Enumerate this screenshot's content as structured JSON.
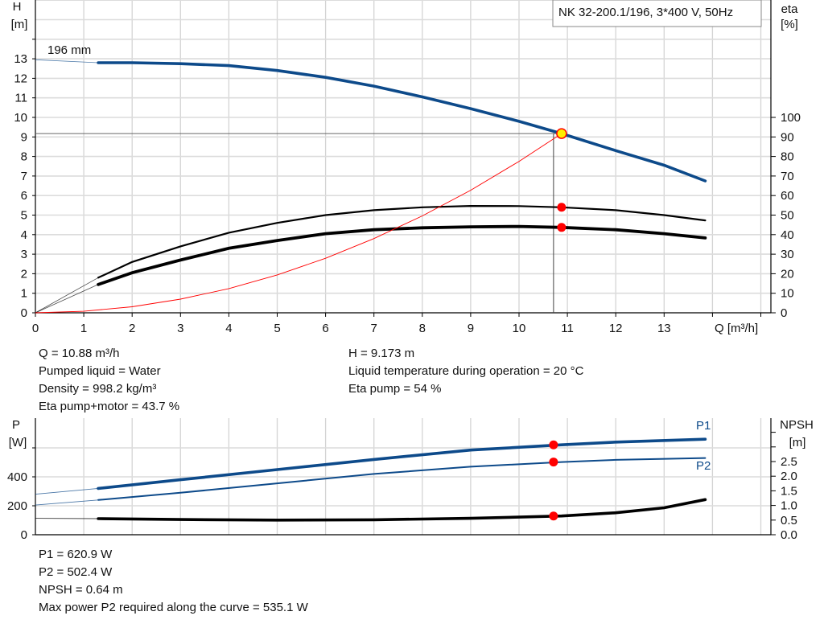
{
  "chart_data": [
    {
      "type": "line",
      "title": "NK 32-200.1/196, 3*400 V, 50Hz",
      "xlabel": "Q [m³/h]",
      "ylabel": "H [m]",
      "ylabel_name": "H",
      "ylabel_unit": "[m]",
      "y2label_name": "eta",
      "y2label_unit": "[%]",
      "xlim": [
        0,
        15
      ],
      "ylim": [
        0,
        16
      ],
      "y2lim": [
        0,
        160
      ],
      "x_ticks": [
        0,
        1,
        2,
        3,
        4,
        5,
        6,
        7,
        8,
        9,
        10,
        11,
        12,
        13
      ],
      "y_ticks": [
        0,
        1,
        2,
        3,
        4,
        5,
        6,
        7,
        8,
        9,
        10,
        11,
        12,
        13
      ],
      "y2_ticks": [
        0,
        10,
        20,
        30,
        40,
        50,
        60,
        70,
        80,
        90,
        100
      ],
      "grid": true,
      "annotation": "196 mm",
      "colors": {
        "head": "#0d4a8a",
        "eta": "#000000",
        "system": "#ff0000",
        "point": "#ff0000",
        "duty_point_fill": "#ffee00"
      },
      "duty_point": {
        "Q": 10.88,
        "H": 9.173,
        "eta_pump": 54,
        "eta_pump_motor": 43.7
      },
      "series": [
        {
          "key": "head",
          "axis": "H",
          "x": [
            0,
            1.3,
            2,
            3,
            4,
            5,
            6,
            7,
            8,
            9,
            10,
            10.88,
            12,
            13,
            13.85
          ],
          "y": [
            12.95,
            12.8,
            12.8,
            12.75,
            12.65,
            12.4,
            12.05,
            11.6,
            11.05,
            10.45,
            9.8,
            9.173,
            8.3,
            7.55,
            6.75
          ]
        },
        {
          "key": "eta-pump",
          "axis": "eta",
          "x": [
            0,
            1.3,
            2,
            3,
            4,
            5,
            6,
            7,
            8,
            9,
            10,
            10.88,
            12,
            13,
            13.85
          ],
          "y": [
            0,
            18,
            26,
            34,
            41,
            46,
            50,
            52.5,
            54,
            54.7,
            54.6,
            54,
            52.5,
            50,
            47.3
          ]
        },
        {
          "key": "eta-pump-motor",
          "axis": "eta",
          "x": [
            0,
            1.3,
            2,
            3,
            4,
            5,
            6,
            7,
            8,
            9,
            10,
            10.88,
            12,
            13,
            13.85
          ],
          "y": [
            0,
            14.5,
            20.5,
            27,
            33,
            37,
            40.5,
            42.5,
            43.5,
            44,
            44.2,
            43.7,
            42.5,
            40.5,
            38.3
          ]
        },
        {
          "key": "system-curve",
          "axis": "H",
          "x": [
            0,
            1,
            2,
            3,
            4,
            5,
            6,
            7,
            8,
            9,
            10,
            10.88
          ],
          "y": [
            0,
            0.077,
            0.31,
            0.7,
            1.24,
            1.94,
            2.79,
            3.8,
            4.96,
            6.27,
            7.75,
            9.173
          ]
        }
      ]
    },
    {
      "type": "line",
      "ylabel_name": "P",
      "ylabel_unit": "[W]",
      "y2label_name": "NPSH",
      "y2label_unit": "[m]",
      "ylim": [
        0,
        800
      ],
      "y2lim": [
        0,
        4
      ],
      "xlim": [
        0,
        15
      ],
      "y_ticks": [
        0,
        200,
        400
      ],
      "y2_ticks": [
        "0.0",
        "0.5",
        "1.0",
        "1.5",
        "2.0",
        "2.5"
      ],
      "grid": true,
      "series": [
        {
          "key": "P1",
          "name": "P1",
          "axis": "P",
          "x": [
            0,
            1.3,
            3,
            5,
            7,
            9,
            10.88,
            12,
            13.85
          ],
          "y": [
            280,
            320,
            380,
            450,
            520,
            585,
            620.9,
            640,
            660
          ]
        },
        {
          "key": "P2",
          "name": "P2",
          "axis": "P",
          "x": [
            0,
            1.3,
            3,
            5,
            7,
            9,
            10.88,
            12,
            13.85
          ],
          "y": [
            205,
            240,
            290,
            355,
            420,
            470,
            502.4,
            517,
            530
          ]
        },
        {
          "key": "NPSH",
          "axis": "NPSH",
          "x": [
            0,
            1.3,
            3,
            5,
            7,
            9,
            10.88,
            12,
            13,
            13.85
          ],
          "y": [
            0.56,
            0.55,
            0.52,
            0.5,
            0.51,
            0.56,
            0.64,
            0.75,
            0.92,
            1.2
          ]
        }
      ]
    }
  ],
  "info_top": {
    "left": [
      "Q = 10.88 m³/h",
      "Pumped liquid = Water",
      "Density = 998.2 kg/m³",
      "Eta pump+motor = 43.7 %"
    ],
    "right": [
      "H = 9.173 m",
      "Liquid temperature during operation = 20 °C",
      "Eta pump = 54 %"
    ]
  },
  "info_bottom": [
    "P1 = 620.9 W",
    "P2 = 502.4 W",
    "NPSH = 0.64 m",
    "Max power P2 required along the curve = 535.1 W"
  ]
}
